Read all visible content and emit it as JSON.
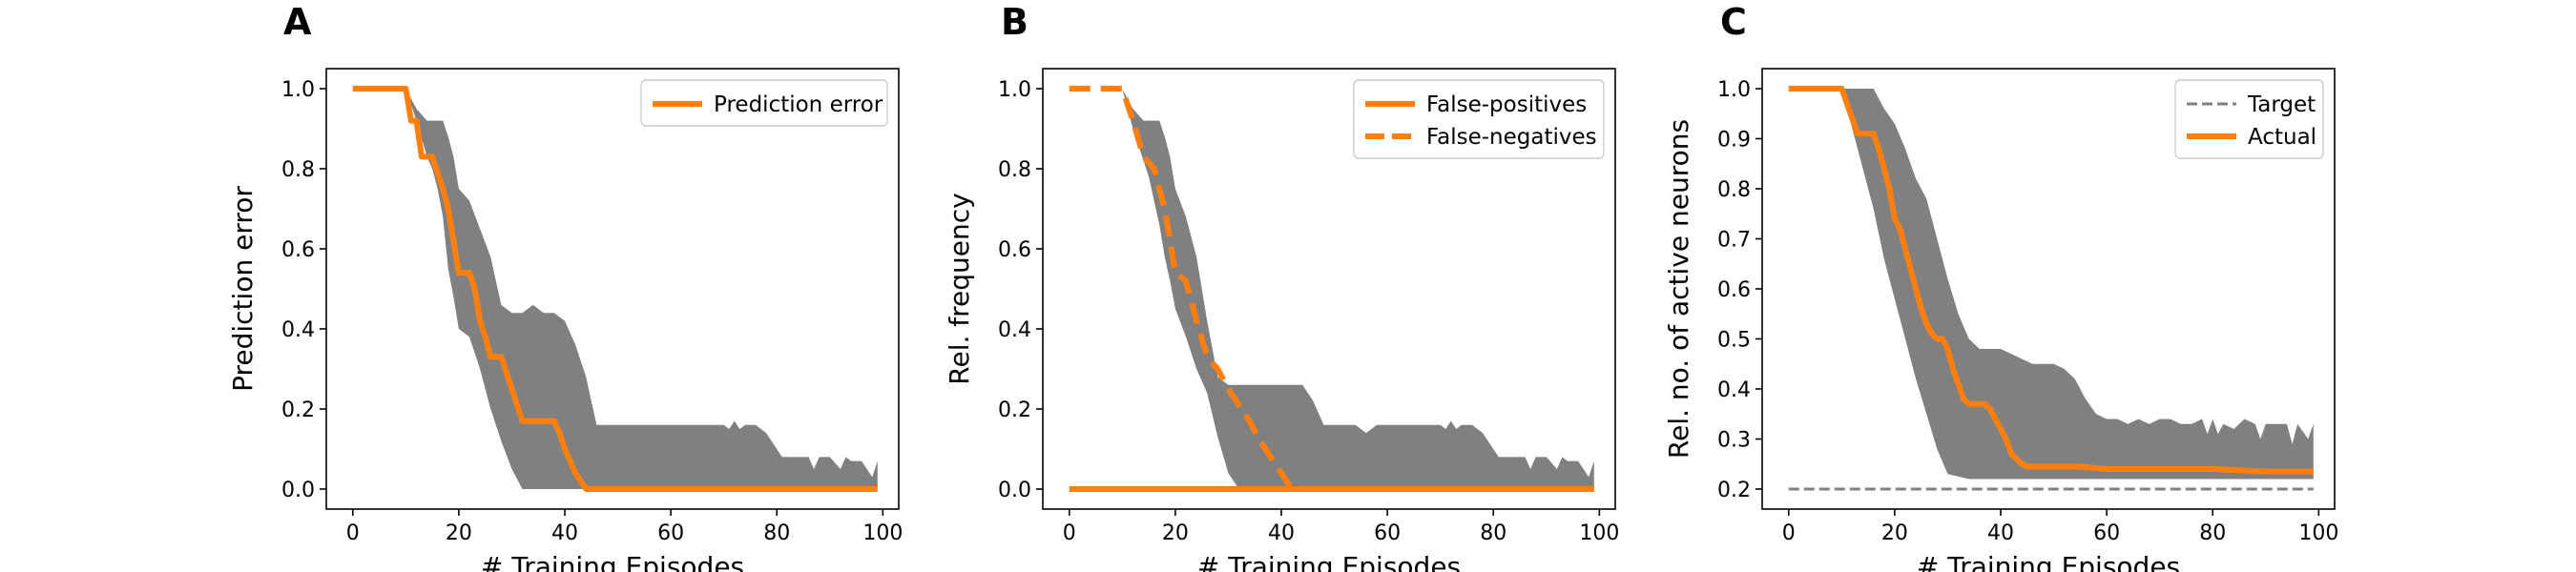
{
  "colors": {
    "orange": "#ff7f0e",
    "band": "#808080",
    "target": "#808080"
  },
  "chart_data": [
    {
      "type": "line",
      "panel": "A",
      "xlabel": "# Training Episodes",
      "ylabel": "Prediction error",
      "xlim": [
        -5,
        103
      ],
      "ylim": [
        -0.05,
        1.05
      ],
      "xticks": [
        0,
        20,
        40,
        60,
        80,
        100
      ],
      "xtick_labels": [
        "0",
        "20",
        "40",
        "60",
        "80",
        "100"
      ],
      "yticks": [
        0.0,
        0.2,
        0.4,
        0.6,
        0.8,
        1.0
      ],
      "ytick_labels": [
        "0.0",
        "0.2",
        "0.4",
        "0.6",
        "0.8",
        "1.0"
      ],
      "legend_position": "top-right",
      "series": [
        {
          "name": "Prediction error",
          "style": "solid",
          "x": [
            0,
            10,
            11,
            12,
            13,
            14,
            15,
            16,
            17,
            18,
            19,
            20,
            21,
            22,
            23,
            24,
            25,
            26,
            27,
            28,
            29,
            30,
            31,
            32,
            38,
            39,
            40,
            41,
            42,
            43,
            44,
            45,
            99
          ],
          "y": [
            1.0,
            1.0,
            0.92,
            0.92,
            0.83,
            0.83,
            0.83,
            0.79,
            0.75,
            0.7,
            0.62,
            0.54,
            0.54,
            0.54,
            0.5,
            0.42,
            0.38,
            0.33,
            0.33,
            0.33,
            0.29,
            0.25,
            0.21,
            0.17,
            0.17,
            0.14,
            0.1,
            0.07,
            0.04,
            0.02,
            0.0,
            0.0,
            0.0
          ]
        }
      ],
      "band": {
        "x": [
          0,
          10,
          12,
          14,
          15,
          16,
          17,
          18,
          19,
          20,
          22,
          24,
          26,
          28,
          30,
          32,
          34,
          36,
          38,
          40,
          42,
          44,
          46,
          48,
          50,
          52,
          54,
          56,
          58,
          60,
          62,
          64,
          66,
          68,
          70,
          71,
          72,
          73,
          74,
          76,
          78,
          79,
          80,
          81,
          82,
          84,
          86,
          87,
          88,
          90,
          92,
          93,
          94,
          96,
          98,
          99
        ],
        "upper": [
          1.0,
          1.0,
          0.95,
          0.92,
          0.92,
          0.92,
          0.92,
          0.88,
          0.83,
          0.75,
          0.72,
          0.65,
          0.58,
          0.46,
          0.44,
          0.44,
          0.46,
          0.44,
          0.44,
          0.42,
          0.36,
          0.28,
          0.16,
          0.16,
          0.16,
          0.16,
          0.16,
          0.16,
          0.16,
          0.16,
          0.16,
          0.16,
          0.16,
          0.16,
          0.16,
          0.15,
          0.17,
          0.15,
          0.16,
          0.16,
          0.14,
          0.12,
          0.1,
          0.08,
          0.08,
          0.08,
          0.08,
          0.05,
          0.08,
          0.08,
          0.05,
          0.08,
          0.07,
          0.07,
          0.03,
          0.07
        ],
        "lower": [
          1.0,
          1.0,
          0.92,
          0.83,
          0.8,
          0.75,
          0.68,
          0.55,
          0.48,
          0.4,
          0.38,
          0.3,
          0.2,
          0.12,
          0.05,
          0.0,
          0.0,
          0.0,
          0.0,
          0.0,
          0.0,
          0.0,
          0.0,
          0.0,
          0.0,
          0.0,
          0.0,
          0.0,
          0.0,
          0.0,
          0.0,
          0.0,
          0.0,
          0.0,
          0.0,
          0.0,
          0.0,
          0.0,
          0.0,
          0.0,
          0.0,
          0.0,
          0.0,
          0.0,
          0.0,
          0.0,
          0.0,
          0.0,
          0.0,
          0.0,
          0.0,
          0.0,
          0.0,
          0.0,
          0.0,
          0.0
        ]
      }
    },
    {
      "type": "line",
      "panel": "B",
      "xlabel": "# Training Episodes",
      "ylabel": "Rel. frequency",
      "xlim": [
        -5,
        103
      ],
      "ylim": [
        -0.05,
        1.05
      ],
      "xticks": [
        0,
        20,
        40,
        60,
        80,
        100
      ],
      "xtick_labels": [
        "0",
        "20",
        "40",
        "60",
        "80",
        "100"
      ],
      "yticks": [
        0.0,
        0.2,
        0.4,
        0.6,
        0.8,
        1.0
      ],
      "ytick_labels": [
        "0.0",
        "0.2",
        "0.4",
        "0.6",
        "0.8",
        "1.0"
      ],
      "legend_position": "top-right",
      "series": [
        {
          "name": "False-positives",
          "style": "solid",
          "x": [
            0,
            99
          ],
          "y": [
            0.0,
            0.0
          ]
        },
        {
          "name": "False-negatives",
          "style": "dashed",
          "x": [
            0,
            10,
            12,
            14,
            16,
            18,
            20,
            22,
            24,
            26,
            28,
            30,
            32,
            34,
            36,
            38,
            40,
            42,
            99
          ],
          "y": [
            1.0,
            1.0,
            0.92,
            0.83,
            0.8,
            0.7,
            0.54,
            0.52,
            0.42,
            0.33,
            0.3,
            0.25,
            0.21,
            0.17,
            0.12,
            0.08,
            0.04,
            0.0,
            0.0
          ]
        }
      ],
      "band": {
        "x": [
          0,
          10,
          12,
          14,
          15,
          16,
          17,
          18,
          19,
          20,
          22,
          24,
          26,
          28,
          30,
          32,
          34,
          36,
          38,
          40,
          42,
          44,
          46,
          48,
          50,
          52,
          54,
          56,
          58,
          60,
          62,
          64,
          66,
          68,
          70,
          71,
          72,
          73,
          74,
          76,
          78,
          79,
          80,
          81,
          82,
          84,
          86,
          87,
          88,
          90,
          92,
          93,
          94,
          96,
          98,
          99
        ],
        "upper": [
          1.0,
          1.0,
          0.95,
          0.92,
          0.92,
          0.92,
          0.92,
          0.88,
          0.83,
          0.75,
          0.68,
          0.58,
          0.42,
          0.28,
          0.26,
          0.26,
          0.26,
          0.26,
          0.26,
          0.26,
          0.26,
          0.26,
          0.22,
          0.16,
          0.16,
          0.16,
          0.16,
          0.14,
          0.16,
          0.16,
          0.16,
          0.16,
          0.16,
          0.16,
          0.16,
          0.15,
          0.17,
          0.15,
          0.16,
          0.16,
          0.14,
          0.12,
          0.1,
          0.08,
          0.08,
          0.08,
          0.08,
          0.05,
          0.08,
          0.08,
          0.05,
          0.08,
          0.07,
          0.07,
          0.03,
          0.07
        ],
        "lower": [
          1.0,
          1.0,
          0.9,
          0.82,
          0.78,
          0.72,
          0.66,
          0.58,
          0.52,
          0.45,
          0.38,
          0.3,
          0.24,
          0.13,
          0.04,
          0.0,
          0.0,
          0.0,
          0.0,
          0.0,
          0.0,
          0.0,
          0.0,
          0.0,
          0.0,
          0.0,
          0.0,
          0.0,
          0.0,
          0.0,
          0.0,
          0.0,
          0.0,
          0.0,
          0.0,
          0.0,
          0.0,
          0.0,
          0.0,
          0.0,
          0.0,
          0.0,
          0.0,
          0.0,
          0.0,
          0.0,
          0.0,
          0.0,
          0.0,
          0.0,
          0.0,
          0.0,
          0.0,
          0.0,
          0.0,
          0.0
        ]
      }
    },
    {
      "type": "line",
      "panel": "C",
      "xlabel": "# Training Episodes",
      "ylabel": "Rel. no. of active neurons",
      "xlim": [
        -5,
        103
      ],
      "ylim": [
        0.16,
        1.04
      ],
      "xticks": [
        0,
        20,
        40,
        60,
        80,
        100
      ],
      "xtick_labels": [
        "0",
        "20",
        "40",
        "60",
        "80",
        "100"
      ],
      "yticks": [
        0.2,
        0.3,
        0.4,
        0.5,
        0.6,
        0.7,
        0.8,
        0.9,
        1.0
      ],
      "ytick_labels": [
        "0.2",
        "0.3",
        "0.4",
        "0.5",
        "0.6",
        "0.7",
        "0.8",
        "0.9",
        "1.0"
      ],
      "legend_position": "top-right",
      "series": [
        {
          "name": "Target",
          "style": "target-dashed",
          "x": [
            0,
            99
          ],
          "y": [
            0.2,
            0.2
          ]
        },
        {
          "name": "Actual",
          "style": "solid",
          "x": [
            0,
            10,
            11,
            12,
            13,
            14,
            16,
            17,
            18,
            19,
            20,
            21,
            22,
            23,
            24,
            25,
            26,
            27,
            28,
            29,
            30,
            31,
            32,
            33,
            34,
            35,
            37,
            38,
            39,
            40,
            41,
            42,
            43,
            44,
            45,
            50,
            55,
            60,
            65,
            70,
            80,
            90,
            99
          ],
          "y": [
            1.0,
            1.0,
            0.97,
            0.94,
            0.91,
            0.91,
            0.91,
            0.88,
            0.84,
            0.8,
            0.74,
            0.72,
            0.68,
            0.64,
            0.6,
            0.56,
            0.53,
            0.51,
            0.5,
            0.5,
            0.48,
            0.44,
            0.41,
            0.38,
            0.37,
            0.37,
            0.37,
            0.36,
            0.34,
            0.32,
            0.3,
            0.27,
            0.26,
            0.25,
            0.245,
            0.245,
            0.245,
            0.24,
            0.24,
            0.24,
            0.24,
            0.235,
            0.235
          ]
        }
      ],
      "band": {
        "x": [
          0,
          10,
          12,
          14,
          16,
          18,
          20,
          22,
          24,
          26,
          28,
          30,
          32,
          34,
          36,
          38,
          40,
          42,
          44,
          46,
          48,
          50,
          52,
          54,
          56,
          58,
          60,
          62,
          64,
          66,
          68,
          70,
          72,
          74,
          76,
          78,
          79,
          80,
          81,
          82,
          84,
          86,
          88,
          89,
          90,
          92,
          94,
          95,
          96,
          98,
          99
        ],
        "upper": [
          1.0,
          1.0,
          1.0,
          1.0,
          1.0,
          0.96,
          0.93,
          0.88,
          0.82,
          0.78,
          0.7,
          0.62,
          0.55,
          0.5,
          0.48,
          0.48,
          0.48,
          0.47,
          0.46,
          0.45,
          0.45,
          0.45,
          0.44,
          0.42,
          0.38,
          0.35,
          0.34,
          0.34,
          0.33,
          0.34,
          0.33,
          0.34,
          0.34,
          0.33,
          0.33,
          0.34,
          0.31,
          0.34,
          0.31,
          0.33,
          0.32,
          0.34,
          0.33,
          0.3,
          0.33,
          0.33,
          0.33,
          0.29,
          0.33,
          0.3,
          0.33
        ],
        "lower": [
          1.0,
          1.0,
          0.92,
          0.84,
          0.76,
          0.66,
          0.58,
          0.5,
          0.42,
          0.35,
          0.28,
          0.23,
          0.225,
          0.22,
          0.22,
          0.22,
          0.22,
          0.22,
          0.22,
          0.22,
          0.22,
          0.22,
          0.22,
          0.22,
          0.22,
          0.22,
          0.22,
          0.22,
          0.22,
          0.22,
          0.22,
          0.22,
          0.22,
          0.22,
          0.22,
          0.22,
          0.22,
          0.22,
          0.22,
          0.22,
          0.22,
          0.22,
          0.22,
          0.22,
          0.22,
          0.22,
          0.22,
          0.22,
          0.22,
          0.22,
          0.22
        ]
      }
    }
  ]
}
